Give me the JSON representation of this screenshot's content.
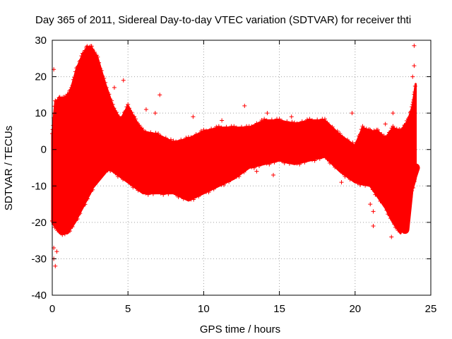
{
  "chart_data": {
    "type": "scatter",
    "title": "Day 365 of 2011, Sidereal Day-to-day VTEC variation (SDTVAR) for receiver thti",
    "xlabel": "GPS time / hours",
    "ylabel": "SDTVAR / TECUs",
    "xlim": [
      0,
      25
    ],
    "ylim": [
      -40,
      30
    ],
    "xticks": [
      0,
      5,
      10,
      15,
      20,
      25
    ],
    "yticks": [
      -40,
      -30,
      -20,
      -10,
      0,
      10,
      20,
      30
    ],
    "grid": true,
    "marker": "+",
    "color": "#ff0000",
    "series": [
      {
        "name": "SDTVAR",
        "envelope_upper": [
          [
            0,
            4
          ],
          [
            0.2,
            13
          ],
          [
            0.5,
            14
          ],
          [
            0.8,
            14
          ],
          [
            1.2,
            16
          ],
          [
            1.6,
            22
          ],
          [
            2.0,
            26
          ],
          [
            2.3,
            28
          ],
          [
            2.6,
            28
          ],
          [
            3.0,
            25
          ],
          [
            3.5,
            18
          ],
          [
            4.0,
            12
          ],
          [
            4.5,
            8
          ],
          [
            5.0,
            12
          ],
          [
            5.5,
            8
          ],
          [
            6.0,
            5
          ],
          [
            7.0,
            4
          ],
          [
            8.0,
            2
          ],
          [
            9.0,
            3
          ],
          [
            10.0,
            5
          ],
          [
            11.0,
            6
          ],
          [
            12.0,
            6
          ],
          [
            13.0,
            6
          ],
          [
            14.0,
            8
          ],
          [
            15.0,
            8
          ],
          [
            16.0,
            7
          ],
          [
            17.0,
            8
          ],
          [
            18.0,
            8
          ],
          [
            19.0,
            4
          ],
          [
            20.0,
            1
          ],
          [
            20.5,
            6
          ],
          [
            21.0,
            5
          ],
          [
            21.5,
            5
          ],
          [
            22.0,
            3
          ],
          [
            22.5,
            6
          ],
          [
            23.0,
            5
          ],
          [
            23.5,
            8
          ],
          [
            23.8,
            12
          ],
          [
            24.0,
            18
          ]
        ],
        "envelope_lower": [
          [
            0,
            -20
          ],
          [
            0.5,
            -23
          ],
          [
            1.0,
            -23
          ],
          [
            1.5,
            -20
          ],
          [
            2.0,
            -16
          ],
          [
            2.5,
            -12
          ],
          [
            3.0,
            -8
          ],
          [
            3.5,
            -5
          ],
          [
            4.0,
            -6
          ],
          [
            5.0,
            -9
          ],
          [
            6.0,
            -12
          ],
          [
            7.0,
            -12
          ],
          [
            8.0,
            -12
          ],
          [
            9.0,
            -14
          ],
          [
            10.0,
            -12
          ],
          [
            11.0,
            -10
          ],
          [
            12.0,
            -8
          ],
          [
            13.0,
            -5
          ],
          [
            14.0,
            -4
          ],
          [
            15.0,
            -3
          ],
          [
            16.0,
            -4
          ],
          [
            17.0,
            -3
          ],
          [
            18.0,
            -2
          ],
          [
            19.0,
            -6
          ],
          [
            20.0,
            -9
          ],
          [
            21.0,
            -10
          ],
          [
            22.0,
            -16
          ],
          [
            22.5,
            -20
          ],
          [
            23.0,
            -23
          ],
          [
            23.5,
            -15
          ],
          [
            24.0,
            -8
          ]
        ],
        "bands": [
          {
            "points": [
              [
                0.9,
                -22
              ],
              [
                1.4,
                -10
              ],
              [
                1.9,
                5
              ],
              [
                2.3,
                18
              ],
              [
                2.6,
                21
              ],
              [
                3.0,
                15
              ],
              [
                3.4,
                5
              ],
              [
                3.8,
                -2
              ]
            ],
            "width": 3
          },
          {
            "points": [
              [
                0.3,
                -2
              ],
              [
                0.8,
                3
              ],
              [
                1.3,
                6
              ],
              [
                1.8,
                9
              ],
              [
                2.3,
                12
              ],
              [
                2.8,
                10
              ],
              [
                3.4,
                6
              ],
              [
                4.0,
                2
              ]
            ],
            "width": 3
          },
          {
            "points": [
              [
                1.4,
                -4
              ],
              [
                2.0,
                -1
              ],
              [
                2.8,
                3
              ],
              [
                3.8,
                6
              ],
              [
                4.8,
                5
              ],
              [
                5.5,
                2
              ]
            ],
            "width": 3
          },
          {
            "points": [
              [
                0.2,
                -6
              ],
              [
                0.6,
                -10
              ],
              [
                1.2,
                -14
              ],
              [
                1.8,
                -13
              ],
              [
                2.6,
                -10
              ],
              [
                3.6,
                -5
              ],
              [
                4.6,
                -3
              ]
            ],
            "width": 3
          },
          {
            "points": [
              [
                5,
                -3
              ],
              [
                6,
                -5
              ],
              [
                7,
                -6
              ],
              [
                8,
                -5
              ],
              [
                9,
                -4
              ],
              [
                10,
                -2
              ],
              [
                11,
                -1
              ],
              [
                12,
                0
              ],
              [
                13,
                1
              ],
              [
                14,
                3
              ],
              [
                15,
                3
              ],
              [
                16,
                3
              ],
              [
                17,
                3
              ],
              [
                18,
                2
              ],
              [
                19,
                0
              ],
              [
                20,
                -3
              ]
            ],
            "width": 6
          },
          {
            "points": [
              [
                20,
                -3
              ],
              [
                21,
                -4
              ],
              [
                22,
                -8
              ],
              [
                22.5,
                -12
              ],
              [
                23,
                -15
              ],
              [
                23.3,
                -22
              ],
              [
                23.6,
                -10
              ],
              [
                24,
                -5
              ]
            ],
            "width": 4
          }
        ],
        "outliers": [
          [
            0.1,
            22
          ],
          [
            0.1,
            -27
          ],
          [
            0.1,
            -30
          ],
          [
            0.2,
            -32
          ],
          [
            0.3,
            -28
          ],
          [
            4.1,
            17
          ],
          [
            4.7,
            19
          ],
          [
            7.1,
            15
          ],
          [
            12.7,
            12
          ],
          [
            14.2,
            10
          ],
          [
            15.8,
            9
          ],
          [
            19.8,
            10
          ],
          [
            21.2,
            -21
          ],
          [
            22.4,
            -24
          ],
          [
            22.5,
            10
          ],
          [
            23.9,
            28.5
          ],
          [
            23.9,
            23
          ],
          [
            23.8,
            20
          ],
          [
            6.2,
            11
          ],
          [
            6.8,
            10
          ],
          [
            9.3,
            9
          ],
          [
            11.2,
            8
          ],
          [
            13.5,
            -6
          ],
          [
            14.6,
            -7
          ],
          [
            19.1,
            -9
          ],
          [
            21.0,
            -15
          ],
          [
            21.2,
            -17
          ],
          [
            22.0,
            7
          ],
          [
            22.8,
            -8
          ]
        ]
      }
    ]
  }
}
